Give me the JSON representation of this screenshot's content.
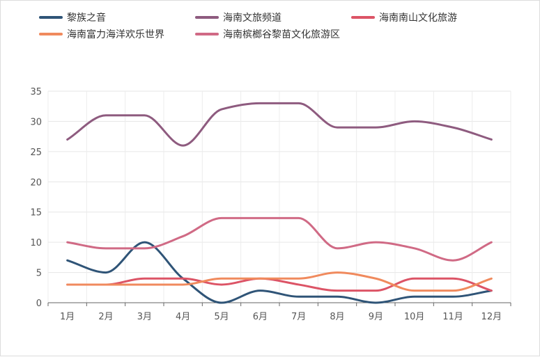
{
  "chart_data": {
    "type": "line",
    "categories": [
      "1月",
      "2月",
      "3月",
      "4月",
      "5月",
      "6月",
      "7月",
      "8月",
      "9月",
      "10月",
      "11月",
      "12月"
    ],
    "ylim": [
      0,
      35
    ],
    "yticks": [
      0,
      5,
      10,
      15,
      20,
      25,
      30,
      35
    ],
    "grid": true,
    "legend_position": "top-left",
    "series": [
      {
        "name": "黎族之音",
        "color": "#2f5477",
        "values": [
          7,
          5,
          10,
          4,
          0,
          2,
          1,
          1,
          0,
          1,
          1,
          2
        ]
      },
      {
        "name": "海南文旅频道",
        "color": "#8e5b7f",
        "values": [
          27,
          31,
          31,
          26,
          32,
          33,
          33,
          29,
          29,
          30,
          29,
          27
        ]
      },
      {
        "name": "海南南山文化旅游",
        "color": "#dc5466",
        "values": [
          3,
          3,
          4,
          4,
          3,
          4,
          3,
          2,
          2,
          4,
          4,
          2
        ]
      },
      {
        "name": "海南富力海洋欢乐世界",
        "color": "#f08a5d",
        "values": [
          3,
          3,
          3,
          3,
          4,
          4,
          4,
          5,
          4,
          2,
          2,
          4
        ]
      },
      {
        "name": "海南槟榔谷黎苗文化旅游区",
        "color": "#d06a85",
        "values": [
          10,
          9,
          9,
          11,
          14,
          14,
          14,
          9,
          10,
          9,
          7,
          10
        ]
      }
    ]
  }
}
